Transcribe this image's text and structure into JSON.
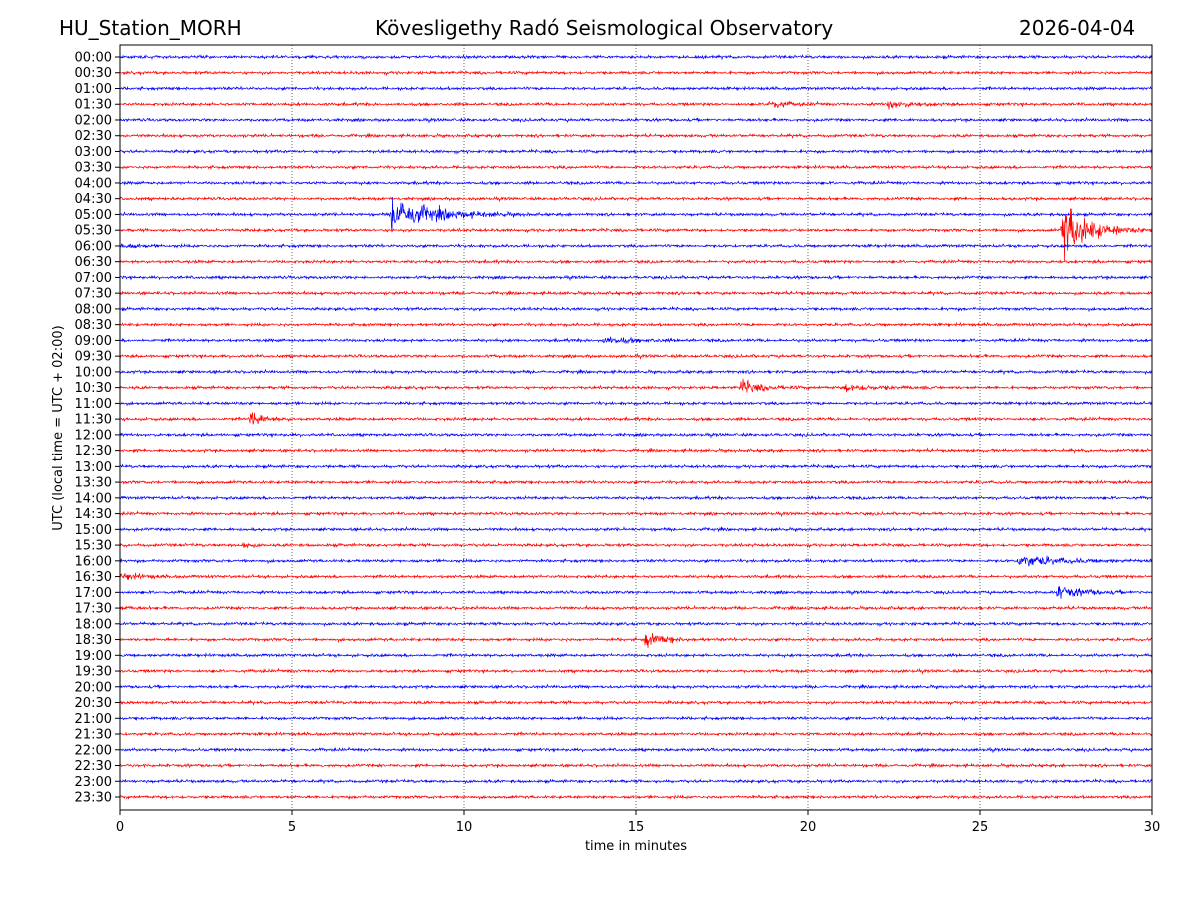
{
  "header": {
    "station": "HU_Station_MORH",
    "observatory": "Kövesligethy Radó Seismological Observatory",
    "date": "2026-04-04"
  },
  "chart_data": {
    "type": "line",
    "title": "Kövesligethy Radó Seismological Observatory",
    "xlabel": "time in minutes",
    "ylabel": "UTC (local time = UTC + 02:00)",
    "xlim": [
      0,
      30
    ],
    "xticks": [
      "0",
      "5",
      "10",
      "15",
      "20",
      "25",
      "30"
    ],
    "xtick_values": [
      0,
      5,
      10,
      15,
      20,
      25,
      30
    ],
    "grid": "vertical dotted",
    "colors": [
      "#0000ff",
      "#ff0000"
    ],
    "noise_amplitude": 0.12,
    "traces": [
      "00:00",
      "00:30",
      "01:00",
      "01:30",
      "02:00",
      "02:30",
      "03:00",
      "03:30",
      "04:00",
      "04:30",
      "05:00",
      "05:30",
      "06:00",
      "06:30",
      "07:00",
      "07:30",
      "08:00",
      "08:30",
      "09:00",
      "09:30",
      "10:00",
      "10:30",
      "11:00",
      "11:30",
      "12:00",
      "12:30",
      "13:00",
      "13:30",
      "14:00",
      "14:30",
      "15:00",
      "15:30",
      "16:00",
      "16:30",
      "17:00",
      "17:30",
      "18:00",
      "18:30",
      "19:00",
      "19:30",
      "20:00",
      "20:30",
      "21:00",
      "21:30",
      "22:00",
      "22:30",
      "23:00",
      "23:30"
    ],
    "events": [
      {
        "trace": "01:30",
        "start": 18.8,
        "end": 20.5,
        "amplitude": 0.5
      },
      {
        "trace": "01:30",
        "start": 22.3,
        "end": 24.5,
        "amplitude": 0.4
      },
      {
        "trace": "05:00",
        "start": 7.85,
        "end": 12.0,
        "amplitude": 1.7
      },
      {
        "trace": "05:30",
        "start": 27.35,
        "end": 30.0,
        "amplitude": 3.0
      },
      {
        "trace": "06:00",
        "start": 0.0,
        "end": 1.8,
        "amplitude": 0.25
      },
      {
        "trace": "09:00",
        "start": 14.0,
        "end": 17.2,
        "amplitude": 0.3
      },
      {
        "trace": "10:30",
        "start": 18.0,
        "end": 20.0,
        "amplitude": 0.7
      },
      {
        "trace": "10:30",
        "start": 21.0,
        "end": 24.5,
        "amplitude": 0.3
      },
      {
        "trace": "11:30",
        "start": 3.75,
        "end": 5.2,
        "amplitude": 0.8
      },
      {
        "trace": "15:30",
        "start": 3.5,
        "end": 4.2,
        "amplitude": 0.5
      },
      {
        "trace": "16:00",
        "start": 26.1,
        "end": 30.0,
        "amplitude": 0.6
      },
      {
        "trace": "16:30",
        "start": 0.0,
        "end": 2.0,
        "amplitude": 0.35
      },
      {
        "trace": "17:00",
        "start": 27.2,
        "end": 30.0,
        "amplitude": 0.6
      },
      {
        "trace": "17:30",
        "start": 0.0,
        "end": 1.0,
        "amplitude": 0.2
      },
      {
        "trace": "18:30",
        "start": 15.2,
        "end": 17.2,
        "amplitude": 0.7
      }
    ]
  }
}
